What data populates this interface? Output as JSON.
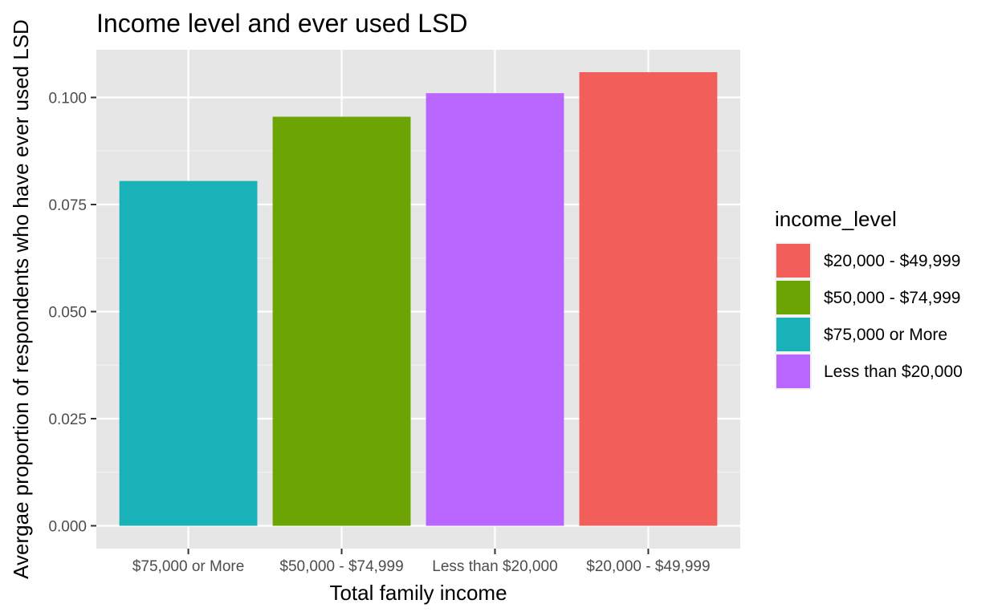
{
  "chart_data": {
    "type": "bar",
    "title": "Income level and ever used LSD",
    "xlabel": "Total family income",
    "ylabel": "Avergae proportion of respondents who have ever used LSD",
    "categories": [
      "$75,000 or More",
      "$50,000 - $74,999",
      "Less than $20,000",
      "$20,000 - $49,999"
    ],
    "values": [
      0.0805,
      0.0955,
      0.101,
      0.1059
    ],
    "bar_colors": [
      "#19B2B8",
      "#6BA403",
      "#B965FF",
      "#F25F5A"
    ],
    "ylim": [
      0,
      0.1101
    ],
    "yticks": [
      0,
      0.025,
      0.05,
      0.075,
      0.1
    ],
    "ytick_labels": [
      "0.000",
      "0.025",
      "0.050",
      "0.075",
      "0.100"
    ],
    "grid": true,
    "panel_background": "#E6E6E6",
    "legend": {
      "title": "income_level",
      "position": "right",
      "items": [
        {
          "label": "$20,000 - $49,999",
          "color": "#F25F5A"
        },
        {
          "label": "$50,000 - $74,999",
          "color": "#6BA403"
        },
        {
          "label": "$75,000 or More",
          "color": "#19B2B8"
        },
        {
          "label": "Less than $20,000",
          "color": "#B965FF"
        }
      ]
    }
  }
}
